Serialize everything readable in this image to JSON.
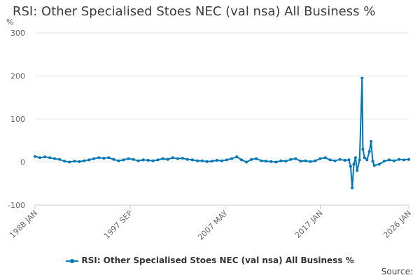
{
  "chart_data": {
    "type": "line",
    "title": "RSI: Other Specialised Stoes NEC (val nsa) All Business %",
    "ylabel": "%",
    "ylim": [
      -100,
      300
    ],
    "yticks": [
      "300",
      "200",
      "100",
      "0",
      "-100"
    ],
    "x_range": [
      "1988-01",
      "2026-01"
    ],
    "xtick_labels": [
      "1988 JAN",
      "1997 SEP",
      "2007 MAY",
      "2017 JAN",
      "2026 JAN"
    ],
    "grid": true,
    "legend_position": "bottom",
    "series": [
      {
        "name": "RSI: Other Specialised Stoes NEC (val nsa) All Business %",
        "color": "#0077b5",
        "points": [
          [
            "1988-01",
            13
          ],
          [
            "1988-07",
            10
          ],
          [
            "1989-01",
            12
          ],
          [
            "1989-07",
            10
          ],
          [
            "1990-01",
            8
          ],
          [
            "1990-07",
            6
          ],
          [
            "1991-01",
            2
          ],
          [
            "1991-07",
            0
          ],
          [
            "1992-01",
            2
          ],
          [
            "1992-07",
            1
          ],
          [
            "1993-01",
            3
          ],
          [
            "1993-07",
            5
          ],
          [
            "1994-01",
            8
          ],
          [
            "1994-07",
            10
          ],
          [
            "1995-01",
            9
          ],
          [
            "1995-07",
            10
          ],
          [
            "1996-01",
            6
          ],
          [
            "1996-07",
            3
          ],
          [
            "1997-01",
            5
          ],
          [
            "1997-07",
            8
          ],
          [
            "1998-01",
            6
          ],
          [
            "1998-07",
            3
          ],
          [
            "1999-01",
            5
          ],
          [
            "1999-07",
            4
          ],
          [
            "2000-01",
            3
          ],
          [
            "2000-07",
            5
          ],
          [
            "2001-01",
            8
          ],
          [
            "2001-07",
            6
          ],
          [
            "2002-01",
            10
          ],
          [
            "2002-07",
            8
          ],
          [
            "2003-01",
            9
          ],
          [
            "2003-07",
            6
          ],
          [
            "2004-01",
            5
          ],
          [
            "2004-07",
            3
          ],
          [
            "2005-01",
            3
          ],
          [
            "2005-07",
            1
          ],
          [
            "2006-01",
            2
          ],
          [
            "2006-07",
            4
          ],
          [
            "2007-01",
            3
          ],
          [
            "2007-07",
            5
          ],
          [
            "2008-01",
            8
          ],
          [
            "2008-07",
            12
          ],
          [
            "2009-01",
            5
          ],
          [
            "2009-07",
            0
          ],
          [
            "2010-01",
            6
          ],
          [
            "2010-07",
            8
          ],
          [
            "2011-01",
            3
          ],
          [
            "2011-07",
            2
          ],
          [
            "2012-01",
            1
          ],
          [
            "2012-07",
            0
          ],
          [
            "2013-01",
            3
          ],
          [
            "2013-07",
            2
          ],
          [
            "2014-01",
            6
          ],
          [
            "2014-07",
            8
          ],
          [
            "2015-01",
            2
          ],
          [
            "2015-07",
            3
          ],
          [
            "2016-01",
            1
          ],
          [
            "2016-07",
            3
          ],
          [
            "2017-01",
            8
          ],
          [
            "2017-07",
            10
          ],
          [
            "2018-01",
            5
          ],
          [
            "2018-07",
            3
          ],
          [
            "2019-01",
            6
          ],
          [
            "2019-07",
            4
          ],
          [
            "2019-12",
            5
          ],
          [
            "2020-02",
            -10
          ],
          [
            "2020-04",
            -60
          ],
          [
            "2020-06",
            -5
          ],
          [
            "2020-08",
            10
          ],
          [
            "2020-10",
            -20
          ],
          [
            "2021-01",
            5
          ],
          [
            "2021-04",
            195
          ],
          [
            "2021-05",
            30
          ],
          [
            "2021-07",
            10
          ],
          [
            "2021-10",
            5
          ],
          [
            "2022-01",
            25
          ],
          [
            "2022-03",
            48
          ],
          [
            "2022-05",
            2
          ],
          [
            "2022-07",
            -8
          ],
          [
            "2023-01",
            -5
          ],
          [
            "2023-07",
            2
          ],
          [
            "2024-01",
            5
          ],
          [
            "2024-07",
            3
          ],
          [
            "2025-01",
            6
          ],
          [
            "2025-07",
            5
          ],
          [
            "2026-01",
            6
          ]
        ]
      }
    ]
  },
  "legend": {
    "label": "RSI: Other Specialised Stoes NEC (val nsa) All Business %"
  },
  "source": {
    "label": "Source:"
  }
}
